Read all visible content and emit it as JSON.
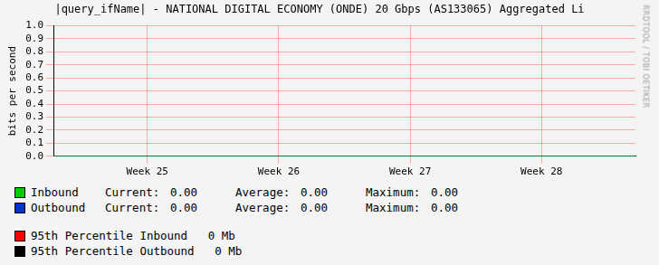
{
  "chart_data": {
    "type": "line",
    "title": "|query_ifName| - NATIONAL DIGITAL ECONOMY (ONDE) 20 Gbps (AS133065) Aggregated Li",
    "y_label": "bits per second",
    "watermark": "RRDTOOL / TOBI OETIKER",
    "categories": [
      null,
      null,
      null,
      null,
      null,
      "Week 25",
      null,
      null,
      null,
      null,
      null,
      null,
      "Week 26",
      null,
      null,
      null,
      null,
      null,
      null,
      "Week 27",
      null,
      null,
      null,
      null,
      null,
      null,
      "Week 28",
      null,
      null,
      null,
      null,
      null
    ],
    "series": [
      {
        "name": "Inbound",
        "color": "#00cc00",
        "values": [
          0,
          0,
          0,
          0,
          0,
          0,
          0,
          0,
          0,
          0,
          0,
          0,
          0,
          0,
          0,
          0,
          0,
          0,
          0,
          0,
          0,
          0,
          0,
          0,
          0,
          0,
          0,
          0,
          0,
          0,
          0,
          0
        ],
        "stats": [
          "0.00",
          "0.00",
          "0.00"
        ]
      },
      {
        "name": "Outbound",
        "color": "#0033cc",
        "values": [
          0,
          0,
          0,
          0,
          0,
          0,
          0,
          0,
          0,
          0,
          0,
          0,
          0,
          0,
          0,
          0,
          0,
          0,
          0,
          0,
          0,
          0,
          0,
          0,
          0,
          0,
          0,
          0,
          0,
          0,
          0,
          0
        ],
        "stats": [
          "0.00",
          "0.00",
          "0.00"
        ]
      }
    ],
    "stat_labels": [
      "Current:",
      "Average:",
      "Maximum:"
    ],
    "percentiles": [
      {
        "name": "95th Percentile Inbound",
        "text": "0 Mb",
        "color": "#ff0000"
      },
      {
        "name": "95th Percentile Outbound",
        "text": "0 Mb",
        "color": "#000000"
      }
    ],
    "ylim": [
      0,
      1
    ],
    "yticks": [
      {
        "value": 0,
        "label": "0.0"
      },
      0.1,
      0.2,
      0.3,
      0.4,
      0.5,
      0.6,
      0.7,
      0.8,
      0.9,
      {
        "value": 1,
        "label": "1.0"
      }
    ],
    "grid": true
  }
}
